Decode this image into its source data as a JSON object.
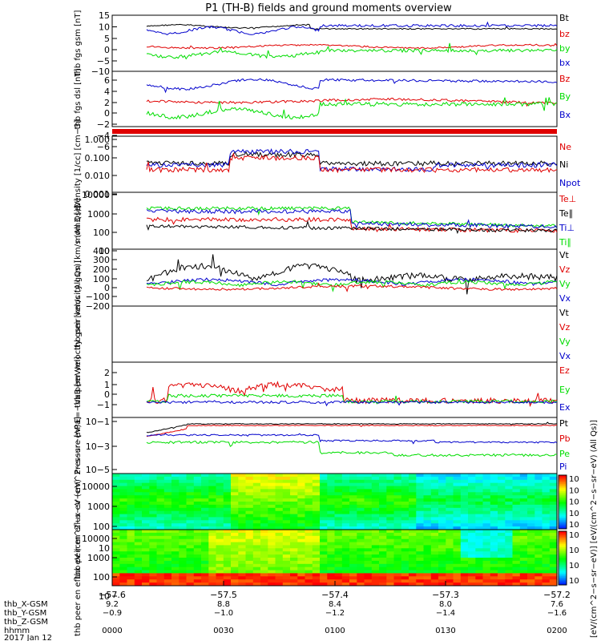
{
  "title": "P1 (TH-B) fields and ground moments overview",
  "colors": {
    "black": "#000000",
    "red": "#e00000",
    "green": "#00dd00",
    "blue": "#0000cc",
    "orange": "#ff9900"
  },
  "xaxis": {
    "ticks_x": [
      -57.6,
      -57.5,
      -57.4,
      -57.3,
      -57.2
    ],
    "tick_labels": [
      "−57.6",
      "−57.5",
      "−57.4",
      "−57.3",
      "−57.2"
    ],
    "rows": [
      {
        "name": "thb_X-GSM",
        "values": [
          "9.2",
          "8.8",
          "8.4",
          "8.0",
          "7.6"
        ]
      },
      {
        "name": "thb_Y-GSM",
        "values": [
          "−0.9",
          "−1.0",
          "−1.2",
          "−1.4",
          "−1.6"
        ]
      },
      {
        "name": "thb_Z-GSM",
        "values": []
      },
      {
        "name": "hhmm",
        "values": [
          "0000",
          "0030",
          "0100",
          "0130",
          "0200"
        ]
      }
    ],
    "date": "2017 Jan 12"
  },
  "chart_data": [
    {
      "type": "line",
      "ylabel": "thb fgs gsm [nT]",
      "ylim": [
        -10,
        15
      ],
      "tick_labels": [
        "15",
        "10",
        "5",
        "0",
        "−5",
        "−10"
      ],
      "series": [
        {
          "name": "Bt",
          "color": "#000000"
        },
        {
          "name": "bz",
          "color": "#e00000"
        },
        {
          "name": "by",
          "color": "#00dd00"
        },
        {
          "name": "bx",
          "color": "#0000cc"
        }
      ]
    },
    {
      "type": "line",
      "ylabel": "thb fgs dsl [nT]",
      "ylim": [
        -7,
        6
      ],
      "tick_labels": [
        "6",
        "4",
        "2",
        "0",
        "−2",
        "−4",
        "−6"
      ],
      "series": [
        {
          "name": "Bz",
          "color": "#e00000"
        },
        {
          "name": "By",
          "color": "#00dd00"
        },
        {
          "name": "Bx",
          "color": "#0000cc"
        }
      ]
    },
    {
      "type": "line",
      "ylabel": "Density [1/cc] [cm−3]",
      "ylim": [
        0.001,
        1.0
      ],
      "log": true,
      "tick_labels": [
        "1.000",
        "0.100",
        "0.010",
        "0.001"
      ],
      "series": [
        {
          "name": "Ne",
          "color": "#e00000"
        },
        {
          "name": "Ni",
          "color": "#000000"
        },
        {
          "name": "Npot",
          "color": "#0000cc"
        }
      ]
    },
    {
      "type": "line",
      "ylabel": "mom3 [eV]",
      "ylim": [
        10,
        10000
      ],
      "log": true,
      "tick_labels": [
        "10000",
        "1000",
        "100",
        "10"
      ],
      "series": [
        {
          "name": "Te⊥",
          "color": "#e00000"
        },
        {
          "name": "Te∥",
          "color": "#000000"
        },
        {
          "name": "Ti⊥",
          "color": "#0000cc"
        },
        {
          "name": "Ti∥",
          "color": "#00dd00"
        }
      ]
    },
    {
      "type": "line",
      "ylabel": "thb peir velocity gsm [km/s (All Qs)]",
      "ylim": [
        -200,
        400
      ],
      "tick_labels": [
        "400",
        "300",
        "200",
        "100",
        "0",
        "−100",
        "−200"
      ],
      "series": [
        {
          "name": "Vt",
          "color": "#000000"
        },
        {
          "name": "Vz",
          "color": "#e00000"
        },
        {
          "name": "Vy",
          "color": "#00dd00"
        },
        {
          "name": "Vx",
          "color": "#0000cc"
        }
      ]
    },
    {
      "type": "line",
      "ylabel": "thb peer velocity gsm [km/s (All Qs)]",
      "ylim": [
        0,
        1
      ],
      "tick_labels": [],
      "series": [
        {
          "name": "Vt",
          "color": "#000000"
        },
        {
          "name": "Vz",
          "color": "#e00000"
        },
        {
          "name": "Vy",
          "color": "#00dd00"
        },
        {
          "name": "Vx",
          "color": "#0000cc"
        }
      ]
    },
    {
      "type": "line",
      "ylabel": "E=−VxB [mV/m]",
      "ylim": [
        -1,
        3
      ],
      "tick_labels": [
        "2",
        "1",
        "0",
        "−1"
      ],
      "series": [
        {
          "name": "Ez",
          "color": "#e00000"
        },
        {
          "name": "Ey",
          "color": "#00dd00"
        },
        {
          "name": "Ex",
          "color": "#0000cc"
        }
      ]
    },
    {
      "type": "line",
      "ylabel": "Pressure [nPa]",
      "ylim": [
        1e-06,
        0.1
      ],
      "log": true,
      "tick_labels": [
        "10−1",
        "10−3",
        "10−5"
      ],
      "series": [
        {
          "name": "Pt",
          "color": "#000000"
        },
        {
          "name": "Pb",
          "color": "#e00000"
        },
        {
          "name": "Pe",
          "color": "#00dd00"
        },
        {
          "name": "Pi",
          "color": "#0000cc"
        }
      ]
    },
    {
      "type": "heatmap",
      "ylabel": "thb peir en eflux eV (cm^2−s−sr−eV)",
      "ylim": [
        5,
        30000
      ],
      "log": true,
      "tick_labels": [
        "10000",
        "1000",
        "100",
        "10"
      ]
    },
    {
      "type": "heatmap",
      "ylabel": "thb peer en eflux eV (cm^2−s−sr−eV)",
      "ylim": [
        5,
        30000
      ],
      "log": true,
      "tick_labels": [
        "10000",
        "1000",
        "100",
        "10"
      ]
    }
  ],
  "colorbar": {
    "label": "[eV/(cm^2−s−sr−eV)] [eV/(cm^2−s−sr−eV) (All Qs)]",
    "top_labels": [
      "10",
      "10",
      "10",
      "10",
      "10"
    ],
    "bottom_labels": [
      "10",
      "10",
      "10",
      "10"
    ]
  }
}
